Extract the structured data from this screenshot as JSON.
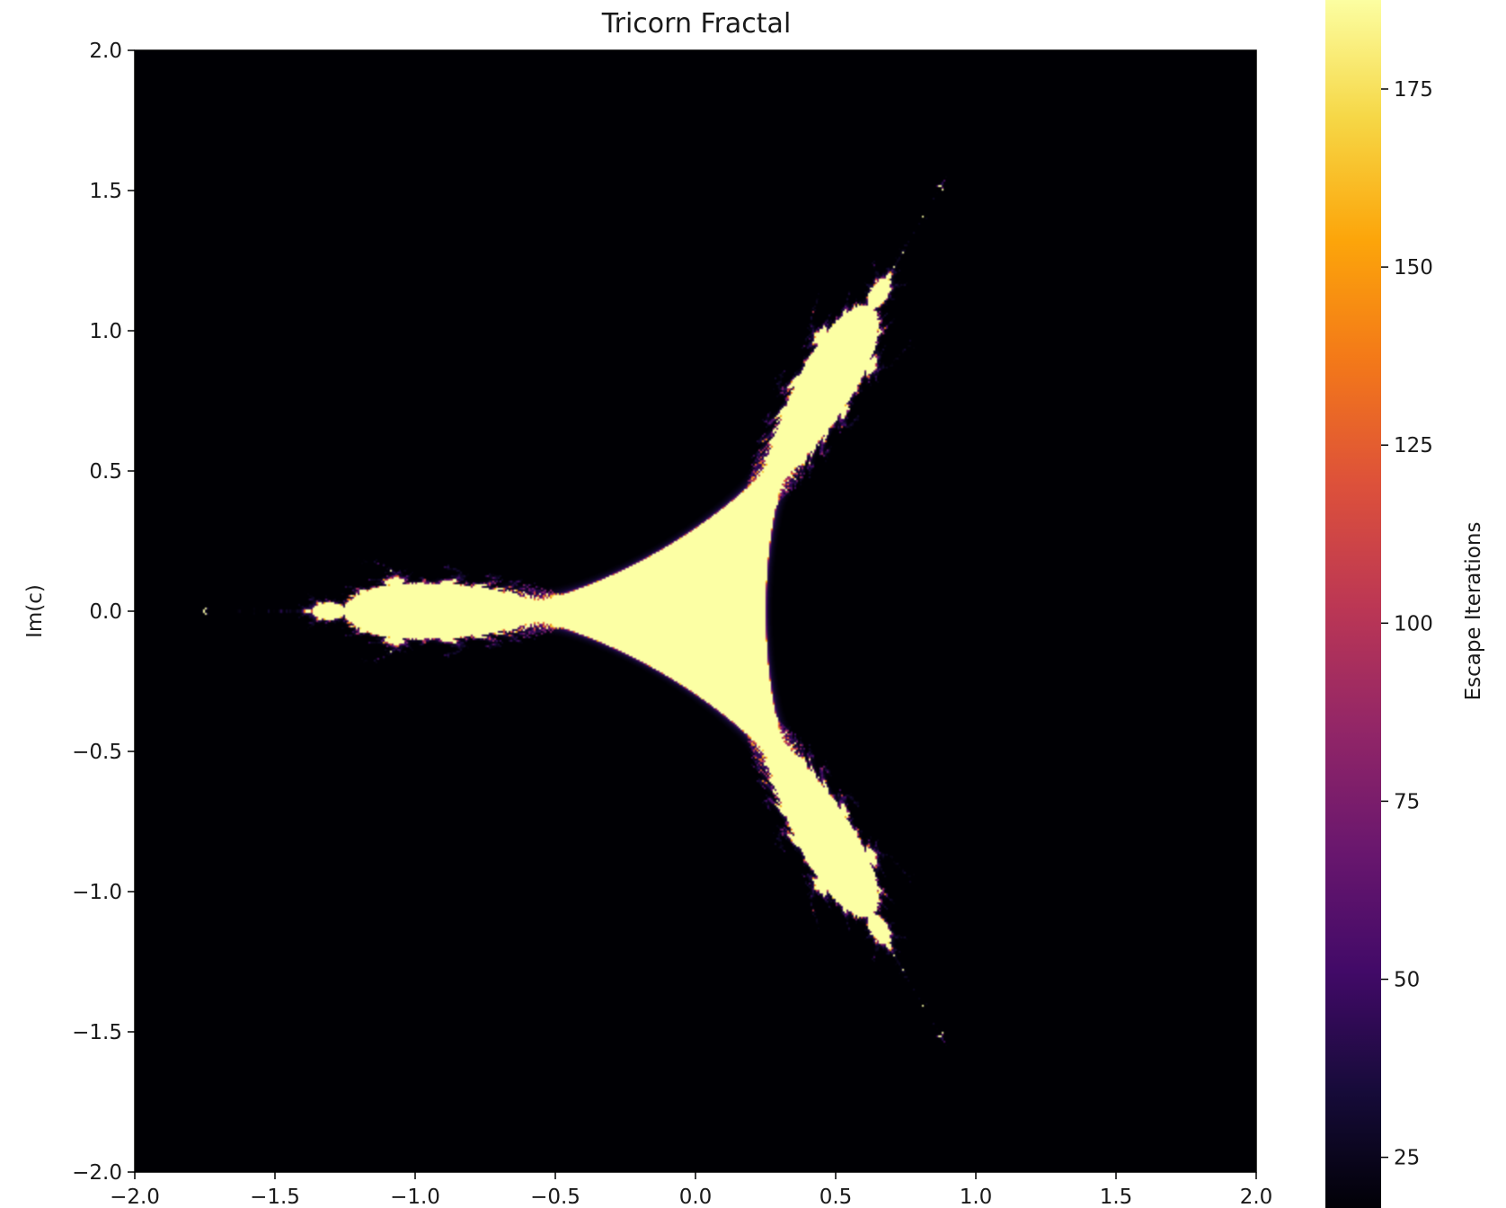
{
  "chart_data": {
    "type": "heatmap",
    "title": "Tricorn Fractal",
    "xlabel": "",
    "ylabel": "Im(c)",
    "xlim": [
      -2.0,
      2.0
    ],
    "ylim": [
      -2.0,
      2.0
    ],
    "x_ticks": [
      "−2.0",
      "−1.5",
      "−1.0",
      "−0.5",
      "0.0",
      "0.5",
      "1.0",
      "1.5",
      "2.0"
    ],
    "x_tick_values": [
      -2.0,
      -1.5,
      -1.0,
      -0.5,
      0.0,
      0.5,
      1.0,
      1.5,
      2.0
    ],
    "y_ticks": [
      "2.0",
      "1.5",
      "1.0",
      "0.5",
      "0.0",
      "−0.5",
      "−1.0",
      "−1.5",
      "−2.0"
    ],
    "y_tick_values": [
      2.0,
      1.5,
      1.0,
      0.5,
      0.0,
      -0.5,
      -1.0,
      -1.5,
      -2.0
    ],
    "colormap": "inferno",
    "grid": false,
    "colorbar": {
      "label": "Escape Iterations",
      "range": [
        17,
        188
      ],
      "ticks": [
        "25",
        "50",
        "75",
        "100",
        "125",
        "150",
        "175"
      ],
      "tick_values": [
        25,
        50,
        75,
        100,
        125,
        150,
        175
      ]
    },
    "max_iterations": 188,
    "fractal": "tricorn"
  }
}
